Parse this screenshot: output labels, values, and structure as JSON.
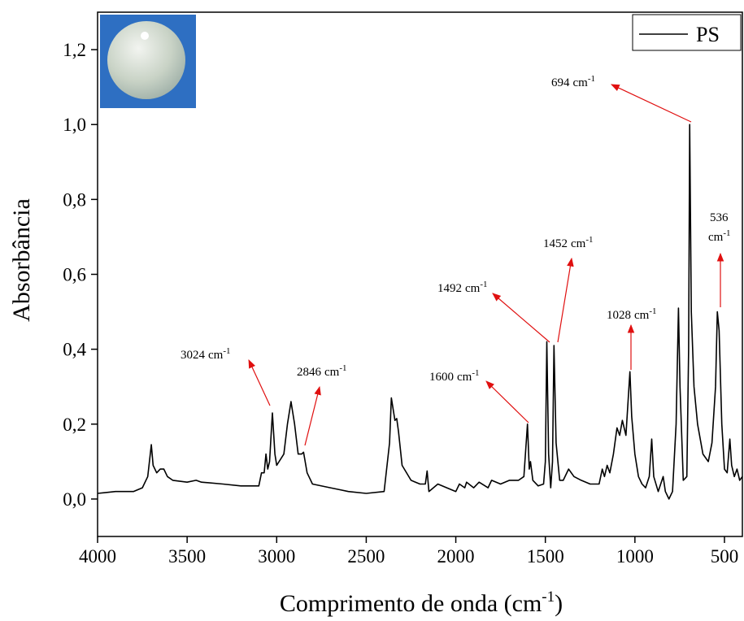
{
  "chart_data": {
    "type": "line",
    "xlabel": {
      "text": "Comprimento de onda (cm",
      "sup": "-1",
      "end": ")"
    },
    "ylabel": "Absorbância",
    "x": [
      4000,
      3900,
      3800,
      3750,
      3720,
      3700,
      3690,
      3670,
      3650,
      3630,
      3610,
      3580,
      3500,
      3450,
      3420,
      3300,
      3200,
      3100,
      3085,
      3070,
      3060,
      3050,
      3040,
      3024,
      3010,
      3000,
      2960,
      2940,
      2920,
      2900,
      2880,
      2860,
      2850,
      2830,
      2800,
      2700,
      2650,
      2600,
      2500,
      2400,
      2370,
      2360,
      2350,
      2340,
      2330,
      2320,
      2300,
      2250,
      2200,
      2170,
      2160,
      2150,
      2100,
      2050,
      2000,
      1980,
      1950,
      1940,
      1900,
      1870,
      1820,
      1800,
      1750,
      1700,
      1650,
      1620,
      1600,
      1590,
      1583,
      1570,
      1540,
      1510,
      1500,
      1492,
      1482,
      1470,
      1460,
      1452,
      1440,
      1420,
      1400,
      1370,
      1340,
      1300,
      1250,
      1200,
      1182,
      1170,
      1155,
      1140,
      1120,
      1100,
      1085,
      1070,
      1050,
      1028,
      1018,
      1000,
      980,
      960,
      940,
      920,
      906,
      895,
      870,
      842,
      830,
      810,
      790,
      770,
      757,
      748,
      730,
      710,
      700,
      694,
      685,
      670,
      650,
      620,
      590,
      570,
      550,
      540,
      530,
      515,
      500,
      485,
      470,
      460,
      445,
      430,
      415,
      400
    ],
    "series": [
      {
        "name": "PS",
        "color": "#000000",
        "values": [
          0.015,
          0.02,
          0.02,
          0.03,
          0.06,
          0.145,
          0.09,
          0.07,
          0.08,
          0.08,
          0.06,
          0.05,
          0.045,
          0.05,
          0.045,
          0.04,
          0.035,
          0.035,
          0.07,
          0.07,
          0.12,
          0.08,
          0.1,
          0.23,
          0.12,
          0.09,
          0.12,
          0.2,
          0.26,
          0.2,
          0.12,
          0.12,
          0.125,
          0.07,
          0.04,
          0.03,
          0.025,
          0.02,
          0.015,
          0.02,
          0.15,
          0.27,
          0.24,
          0.21,
          0.215,
          0.18,
          0.09,
          0.05,
          0.04,
          0.04,
          0.075,
          0.02,
          0.04,
          0.03,
          0.02,
          0.04,
          0.03,
          0.045,
          0.03,
          0.045,
          0.03,
          0.05,
          0.04,
          0.05,
          0.05,
          0.06,
          0.2,
          0.08,
          0.1,
          0.05,
          0.035,
          0.04,
          0.1,
          0.42,
          0.12,
          0.03,
          0.1,
          0.41,
          0.15,
          0.05,
          0.05,
          0.08,
          0.06,
          0.05,
          0.04,
          0.04,
          0.08,
          0.06,
          0.09,
          0.07,
          0.12,
          0.19,
          0.17,
          0.21,
          0.17,
          0.34,
          0.22,
          0.12,
          0.06,
          0.04,
          0.03,
          0.06,
          0.16,
          0.06,
          0.02,
          0.06,
          0.02,
          0.0,
          0.02,
          0.2,
          0.51,
          0.3,
          0.05,
          0.06,
          0.4,
          1.0,
          0.5,
          0.3,
          0.2,
          0.12,
          0.1,
          0.15,
          0.3,
          0.5,
          0.45,
          0.2,
          0.08,
          0.07,
          0.16,
          0.09,
          0.06,
          0.08,
          0.05,
          0.06
        ]
      }
    ],
    "xlim": [
      4000,
      400
    ],
    "xticks": [
      4000,
      3500,
      3000,
      2500,
      2000,
      1500,
      1000,
      500
    ],
    "ylim": [
      -0.1,
      1.3
    ],
    "yticks": [
      {
        "value": 0,
        "label": "0,0"
      },
      {
        "value": 0.2,
        "label": "0,2"
      },
      {
        "value": 0.4,
        "label": "0,4"
      },
      {
        "value": 0.6,
        "label": "0,6"
      },
      {
        "value": 0.8,
        "label": "0,8"
      },
      {
        "value": 1.0,
        "label": "1,0"
      },
      {
        "value": 1.2,
        "label": "1,2"
      }
    ],
    "legend": "top-right",
    "annotations": [
      {
        "text": "3024",
        "unit": "cm",
        "sup": "-1"
      },
      {
        "text": "2846",
        "unit": "cm",
        "sup": "-1"
      },
      {
        "text": "1600",
        "unit": "cm",
        "sup": "-1"
      },
      {
        "text": "1492",
        "unit": "cm",
        "sup": "-1"
      },
      {
        "text": "1452",
        "unit": "cm",
        "sup": "-1"
      },
      {
        "text": "1028",
        "unit": "cm",
        "sup": "-1"
      },
      {
        "text": "694",
        "unit": "cm",
        "sup": "-1"
      },
      {
        "text": "536",
        "unit": "cm",
        "sup": "-1"
      }
    ]
  }
}
